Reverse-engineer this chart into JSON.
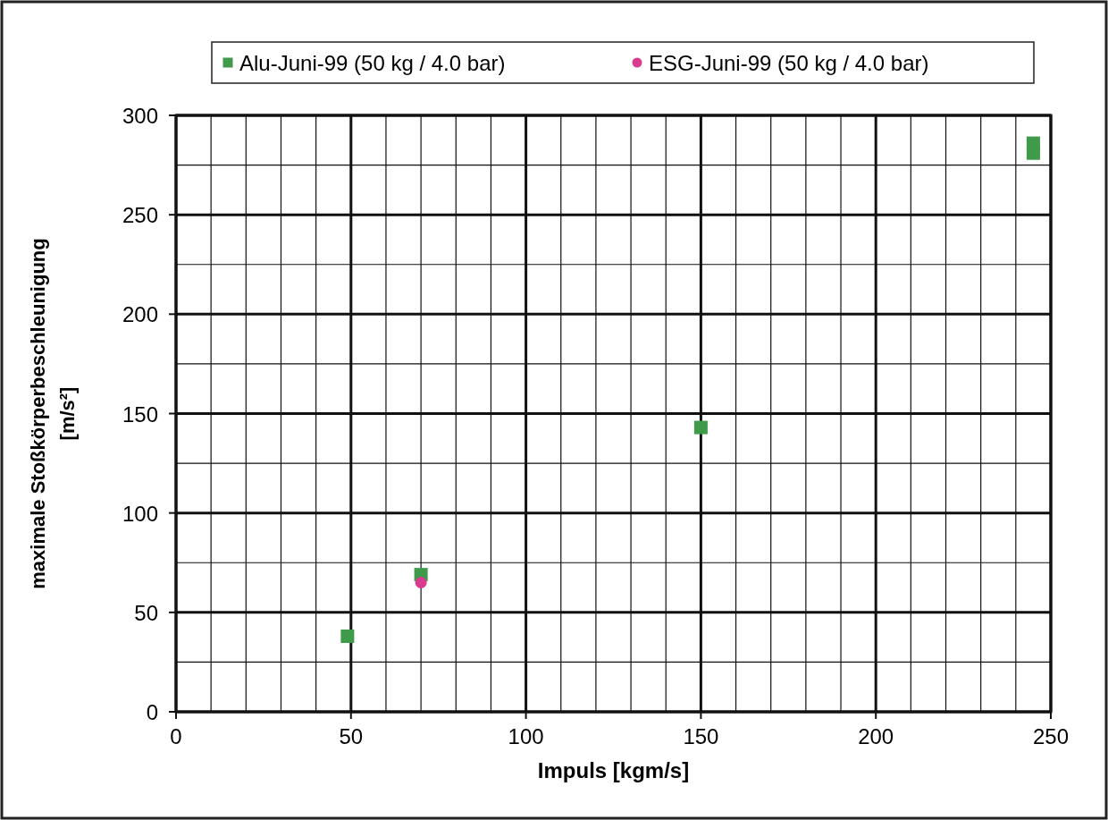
{
  "chart_data": {
    "type": "scatter",
    "xlabel": "Impuls [kgm/s]",
    "ylabel": "maximale Stoßkörperbeschleunigung [m/s²]",
    "xlim": [
      0,
      250
    ],
    "ylim": [
      0,
      300
    ],
    "xticks": [
      0,
      {
        "value": 10,
        "label": null
      },
      {
        "value": 20,
        "label": null
      },
      {
        "value": 30,
        "label": null
      },
      {
        "value": 40,
        "label": null
      },
      50,
      {
        "value": 60,
        "label": null
      },
      {
        "value": 70,
        "label": null
      },
      {
        "value": 80,
        "label": null
      },
      {
        "value": 90,
        "label": null
      },
      100,
      {
        "value": 110,
        "label": null
      },
      {
        "value": 120,
        "label": null
      },
      {
        "value": 130,
        "label": null
      },
      {
        "value": 140,
        "label": null
      },
      150,
      {
        "value": 160,
        "label": null
      },
      {
        "value": 170,
        "label": null
      },
      {
        "value": 180,
        "label": null
      },
      {
        "value": 190,
        "label": null
      },
      200,
      {
        "value": 210,
        "label": null
      },
      {
        "value": 220,
        "label": null
      },
      {
        "value": 230,
        "label": null
      },
      {
        "value": 240,
        "label": null
      },
      250
    ],
    "yticks": [
      0,
      {
        "value": 25,
        "label": null
      },
      50,
      {
        "value": 75,
        "label": null
      },
      100,
      {
        "value": 125,
        "label": null
      },
      150,
      {
        "value": 175,
        "label": null
      },
      200,
      {
        "value": 225,
        "label": null
      },
      250,
      {
        "value": 275,
        "label": null
      },
      300
    ],
    "grid": true,
    "legend": "top",
    "series": [
      {
        "name": "Alu-Juni-99 (50 kg / 4.0 bar)",
        "color": "#3f9a4a",
        "marker": "square",
        "x": [
          49,
          70,
          150,
          245,
          245
        ],
        "values": [
          38,
          69,
          143,
          281,
          286
        ]
      },
      {
        "name": "ESG-Juni-99 (50 kg / 4.0 bar)",
        "color": "#d93c8e",
        "marker": "circle",
        "x": [
          70
        ],
        "values": [
          65
        ]
      }
    ]
  }
}
